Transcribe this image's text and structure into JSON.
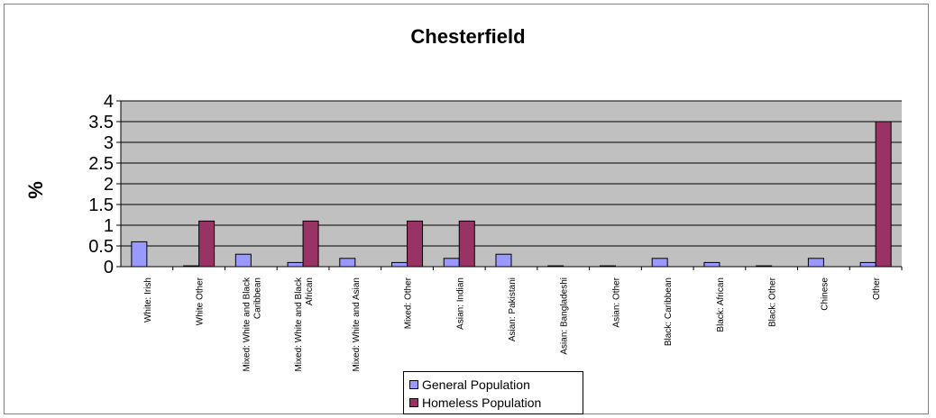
{
  "chart_data": {
    "type": "bar",
    "title": "Chesterfield",
    "xlabel": "",
    "ylabel": "%",
    "ylim": [
      0,
      4
    ],
    "yticks": [
      "0",
      "0.5",
      "1",
      "1.5",
      "2",
      "2.5",
      "3",
      "3.5",
      "4"
    ],
    "grid": true,
    "legend_position": "bottom",
    "categories": [
      "White: Irish",
      "White Other",
      "Mixed: White and Black Caribbean",
      "Mixed: White and Black African",
      "Mixed: White and Asian",
      "Mixed: Other",
      "Asian: Indian",
      "Asian: Pakistani",
      "Asian: Bangladeshi",
      "Asian: Other",
      "Black: Caribbean",
      "Black: African",
      "Black: Other",
      "Chinese",
      "Other"
    ],
    "series": [
      {
        "name": "General Population",
        "color": "#9999ff",
        "values": [
          0.6,
          0.02,
          0.3,
          0.1,
          0.2,
          0.1,
          0.2,
          0.3,
          0.02,
          0.02,
          0.2,
          0.1,
          0.02,
          0.2,
          0.1
        ]
      },
      {
        "name": "Homeless Population",
        "color": "#993366",
        "values": [
          0,
          1.1,
          0,
          1.1,
          0,
          1.1,
          1.1,
          0,
          0,
          0,
          0,
          0,
          0,
          0,
          3.5
        ]
      }
    ]
  }
}
